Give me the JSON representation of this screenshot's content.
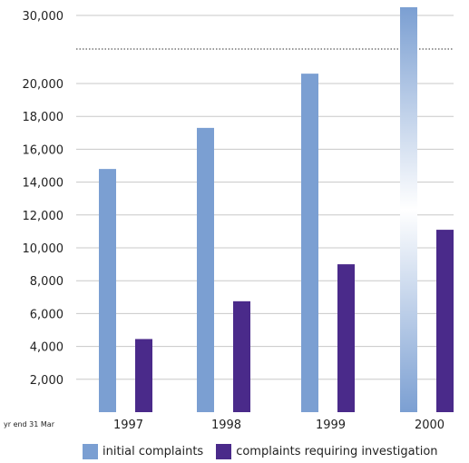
{
  "chart_data": {
    "type": "bar",
    "title": "",
    "xlabel": "",
    "ylabel": "",
    "axis_note": "yr end 31 Mar",
    "categories": [
      "1997",
      "1998",
      "1999",
      "2000"
    ],
    "series": [
      {
        "name": "initial complaints",
        "color": "#7b9fd2",
        "values": [
          14800,
          17300,
          20600,
          30500
        ]
      },
      {
        "name": "complaints requiring investigation",
        "color": "#4a2a8a",
        "values": [
          4450,
          6750,
          9000,
          11100
        ]
      }
    ],
    "y_ticks": [
      "2,000",
      "4,000",
      "6,000",
      "8,000",
      "10,000",
      "12,000",
      "14,000",
      "16,000",
      "18,000",
      "20,000",
      "30,000"
    ],
    "ylim": [
      0,
      31000
    ],
    "axis_break": {
      "from": 21000,
      "to": 29000
    },
    "grid": true,
    "legend_position": "bottom"
  }
}
